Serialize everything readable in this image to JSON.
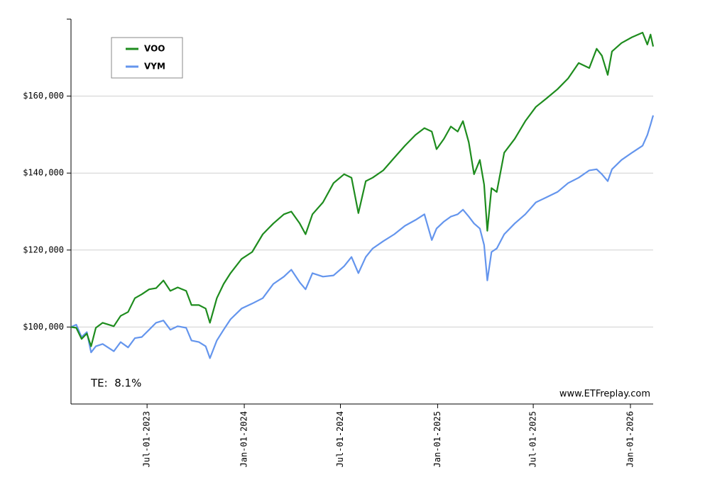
{
  "chart_data": {
    "type": "line",
    "x": [
      "2023-02-07",
      "2023-02-17",
      "2023-02-27",
      "2023-03-09",
      "2023-03-17",
      "2023-03-26",
      "2023-04-08",
      "2023-04-29",
      "2023-05-12",
      "2023-05-26",
      "2023-06-08",
      "2023-06-21",
      "2023-07-05",
      "2023-07-18",
      "2023-08-01",
      "2023-08-14",
      "2023-08-28",
      "2023-09-13",
      "2023-09-23",
      "2023-10-07",
      "2023-10-20",
      "2023-10-28",
      "2023-11-10",
      "2023-11-23",
      "2023-12-06",
      "2023-12-27",
      "2024-01-16",
      "2024-02-05",
      "2024-02-25",
      "2024-03-16",
      "2024-03-30",
      "2024-04-15",
      "2024-04-26",
      "2024-05-09",
      "2024-05-29",
      "2024-06-18",
      "2024-07-08",
      "2024-07-22",
      "2024-08-04",
      "2024-08-18",
      "2024-08-31",
      "2024-09-20",
      "2024-10-11",
      "2024-10-31",
      "2024-11-20",
      "2024-12-07",
      "2024-12-21",
      "2024-12-30",
      "2025-01-13",
      "2025-01-26",
      "2025-02-08",
      "2025-02-18",
      "2025-03-01",
      "2025-03-11",
      "2025-03-22",
      "2025-03-30",
      "2025-04-05",
      "2025-04-13",
      "2025-04-23",
      "2025-05-07",
      "2025-05-27",
      "2025-06-16",
      "2025-07-06",
      "2025-07-26",
      "2025-08-16",
      "2025-09-05",
      "2025-09-25",
      "2025-10-15",
      "2025-10-29",
      "2025-11-08",
      "2025-11-19",
      "2025-11-27",
      "2025-12-15",
      "2026-01-04",
      "2026-01-24",
      "2026-02-02",
      "2026-02-08",
      "2026-02-13"
    ],
    "series": [
      {
        "name": "VOO",
        "color": "#1e8c1e",
        "label_color": "#006400",
        "values": [
          100000,
          99800,
          96900,
          98300,
          95000,
          99800,
          101100,
          100200,
          102900,
          103900,
          107500,
          108500,
          109800,
          110100,
          112100,
          109400,
          110300,
          109400,
          105700,
          105700,
          104800,
          101100,
          107500,
          111200,
          114000,
          117700,
          119500,
          124100,
          126900,
          129300,
          130000,
          126900,
          124100,
          129300,
          132400,
          137400,
          139700,
          138800,
          129600,
          137900,
          138800,
          140700,
          144000,
          147100,
          149900,
          151700,
          150800,
          146200,
          148900,
          152100,
          150800,
          153500,
          148000,
          139700,
          143400,
          137000,
          125000,
          136100,
          135100,
          145300,
          148900,
          153500,
          157200,
          159400,
          161800,
          164600,
          168600,
          167300,
          172300,
          170500,
          165500,
          171600,
          173800,
          175300,
          176500,
          173400,
          176000,
          172900
        ]
      },
      {
        "name": "VYM",
        "color": "#6495ed",
        "label_color": "#0000aa",
        "values": [
          100000,
          100600,
          97400,
          98700,
          93400,
          95000,
          95600,
          93700,
          96100,
          94700,
          97100,
          97400,
          99300,
          101100,
          101700,
          99300,
          100200,
          99800,
          96500,
          96100,
          95000,
          91900,
          96500,
          99300,
          102000,
          104800,
          106100,
          107500,
          111200,
          113100,
          114900,
          111600,
          109800,
          114000,
          113100,
          113400,
          115800,
          118200,
          114000,
          118200,
          120400,
          122300,
          124100,
          126300,
          127800,
          129300,
          122600,
          125600,
          127400,
          128700,
          129300,
          130500,
          128700,
          126900,
          125600,
          121300,
          112100,
          119500,
          120400,
          124100,
          126900,
          129300,
          132400,
          133700,
          135100,
          137400,
          138800,
          140700,
          141000,
          139700,
          137900,
          141000,
          143400,
          145300,
          147100,
          149900,
          152600,
          155000
        ]
      }
    ],
    "xlim": [
      "2023-02-07",
      "2026-02-13"
    ],
    "xticks": [
      {
        "value": "2023-07-01",
        "label": "Jul-01-2023"
      },
      {
        "value": "2024-01-01",
        "label": "Jan-01-2024"
      },
      {
        "value": "2024-07-01",
        "label": "Jul-01-2024"
      },
      {
        "value": "2025-01-01",
        "label": "Jan-01-2025"
      },
      {
        "value": "2025-07-01",
        "label": "Jul-01-2025"
      },
      {
        "value": "2026-01-01",
        "label": "Jan-01-2026"
      }
    ],
    "ylim": [
      80000,
      180000
    ],
    "yticks": [
      {
        "value": 100000,
        "label": "$100,000"
      },
      {
        "value": 120000,
        "label": "$120,000"
      },
      {
        "value": 140000,
        "label": "$140,000"
      },
      {
        "value": 160000,
        "label": "$160,000"
      }
    ],
    "grid": true,
    "legend": "upper left",
    "annotations": [
      "TE:  8.1%",
      "www.ETFreplay.com"
    ]
  }
}
